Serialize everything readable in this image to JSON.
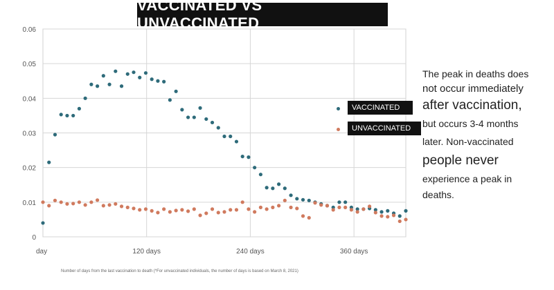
{
  "title": "VACCINATED VS UNVACCINATED",
  "annotation": [
    "The peak in deaths does",
    "not occur immediately",
    "after vaccination,",
    "but occurs 3-4 months",
    "later. Non-vaccinated",
    "people never",
    "experience a peak in",
    "deaths."
  ],
  "footnote": "Number of days from the last vaccination to death (*For unvaccinated individuals, the number of days is based on March 8, 2021)",
  "colors": {
    "vaccinated": "#2e6b7a",
    "unvaccinated": "#d07a5e"
  },
  "chart_data": {
    "type": "scatter",
    "title": "VACCINATED VS UNVACCINATED",
    "xlabel": "Number of days from the last vaccination to death (*For unvaccinated individuals, the number of days is based on March 8, 2021)",
    "ylabel": "",
    "xlim": [
      0,
      420
    ],
    "ylim": [
      0,
      0.06
    ],
    "x_ticks": [
      {
        "value": 0,
        "label": "day"
      },
      {
        "value": 120,
        "label": "120 days"
      },
      {
        "value": 240,
        "label": "240 days"
      },
      {
        "value": 360,
        "label": "360 days"
      }
    ],
    "y_ticks": [
      {
        "value": 0,
        "label": "0"
      },
      {
        "value": 0.01,
        "label": "0.01"
      },
      {
        "value": 0.02,
        "label": "0.02"
      },
      {
        "value": 0.03,
        "label": "0.03"
      },
      {
        "value": 0.04,
        "label": "0.04"
      },
      {
        "value": 0.05,
        "label": "0.05"
      },
      {
        "value": 0.06,
        "label": "0.06"
      }
    ],
    "grid": true,
    "legend_position": "right",
    "series": [
      {
        "name": "VACCINATED",
        "color": "#2e6b7a",
        "points": [
          [
            0,
            0.004
          ],
          [
            7,
            0.0215
          ],
          [
            14,
            0.0295
          ],
          [
            21,
            0.0353
          ],
          [
            28,
            0.035
          ],
          [
            35,
            0.035
          ],
          [
            42,
            0.037
          ],
          [
            49,
            0.04
          ],
          [
            56,
            0.044
          ],
          [
            63,
            0.0435
          ],
          [
            70,
            0.0465
          ],
          [
            77,
            0.044
          ],
          [
            84,
            0.0478
          ],
          [
            91,
            0.0435
          ],
          [
            98,
            0.047
          ],
          [
            105,
            0.0475
          ],
          [
            112,
            0.046
          ],
          [
            119,
            0.0473
          ],
          [
            126,
            0.0455
          ],
          [
            133,
            0.045
          ],
          [
            140,
            0.0448
          ],
          [
            147,
            0.0395
          ],
          [
            154,
            0.042
          ],
          [
            161,
            0.0367
          ],
          [
            168,
            0.0345
          ],
          [
            175,
            0.0345
          ],
          [
            182,
            0.0372
          ],
          [
            189,
            0.034
          ],
          [
            196,
            0.033
          ],
          [
            203,
            0.0315
          ],
          [
            210,
            0.029
          ],
          [
            217,
            0.029
          ],
          [
            224,
            0.0275
          ],
          [
            231,
            0.0232
          ],
          [
            238,
            0.023
          ],
          [
            245,
            0.02
          ],
          [
            252,
            0.018
          ],
          [
            259,
            0.0142
          ],
          [
            266,
            0.014
          ],
          [
            273,
            0.0152
          ],
          [
            280,
            0.014
          ],
          [
            287,
            0.012
          ],
          [
            294,
            0.011
          ],
          [
            301,
            0.0107
          ],
          [
            308,
            0.0105
          ],
          [
            315,
            0.01
          ],
          [
            322,
            0.0095
          ],
          [
            329,
            0.009
          ],
          [
            336,
            0.0085
          ],
          [
            343,
            0.01
          ],
          [
            350,
            0.01
          ],
          [
            357,
            0.0085
          ],
          [
            364,
            0.008
          ],
          [
            371,
            0.008
          ],
          [
            378,
            0.0082
          ],
          [
            385,
            0.0078
          ],
          [
            392,
            0.0072
          ],
          [
            399,
            0.0075
          ],
          [
            406,
            0.0068
          ],
          [
            413,
            0.006
          ],
          [
            420,
            0.0075
          ]
        ]
      },
      {
        "name": "UNVACCINATED",
        "color": "#d07a5e",
        "points": [
          [
            0,
            0.01
          ],
          [
            7,
            0.009
          ],
          [
            14,
            0.0105
          ],
          [
            21,
            0.01
          ],
          [
            28,
            0.0095
          ],
          [
            35,
            0.0096
          ],
          [
            42,
            0.01
          ],
          [
            49,
            0.0092
          ],
          [
            56,
            0.01
          ],
          [
            63,
            0.0106
          ],
          [
            70,
            0.009
          ],
          [
            77,
            0.0092
          ],
          [
            84,
            0.0095
          ],
          [
            91,
            0.0088
          ],
          [
            98,
            0.0085
          ],
          [
            105,
            0.0082
          ],
          [
            112,
            0.0078
          ],
          [
            119,
            0.008
          ],
          [
            126,
            0.0075
          ],
          [
            133,
            0.007
          ],
          [
            140,
            0.008
          ],
          [
            147,
            0.0072
          ],
          [
            154,
            0.0076
          ],
          [
            161,
            0.0078
          ],
          [
            168,
            0.0074
          ],
          [
            175,
            0.008
          ],
          [
            182,
            0.0062
          ],
          [
            189,
            0.0068
          ],
          [
            196,
            0.008
          ],
          [
            203,
            0.007
          ],
          [
            210,
            0.0072
          ],
          [
            217,
            0.0078
          ],
          [
            224,
            0.0078
          ],
          [
            231,
            0.01
          ],
          [
            238,
            0.008
          ],
          [
            245,
            0.0072
          ],
          [
            252,
            0.0085
          ],
          [
            259,
            0.008
          ],
          [
            266,
            0.0085
          ],
          [
            273,
            0.009
          ],
          [
            280,
            0.0105
          ],
          [
            287,
            0.0085
          ],
          [
            294,
            0.0082
          ],
          [
            301,
            0.006
          ],
          [
            308,
            0.0055
          ],
          [
            315,
            0.0098
          ],
          [
            322,
            0.0092
          ],
          [
            329,
            0.009
          ],
          [
            336,
            0.0078
          ],
          [
            343,
            0.0085
          ],
          [
            350,
            0.0085
          ],
          [
            357,
            0.0078
          ],
          [
            364,
            0.0072
          ],
          [
            371,
            0.008
          ],
          [
            378,
            0.0088
          ],
          [
            385,
            0.007
          ],
          [
            392,
            0.006
          ],
          [
            399,
            0.0058
          ],
          [
            406,
            0.0062
          ],
          [
            413,
            0.0045
          ],
          [
            420,
            0.005
          ]
        ]
      }
    ]
  }
}
